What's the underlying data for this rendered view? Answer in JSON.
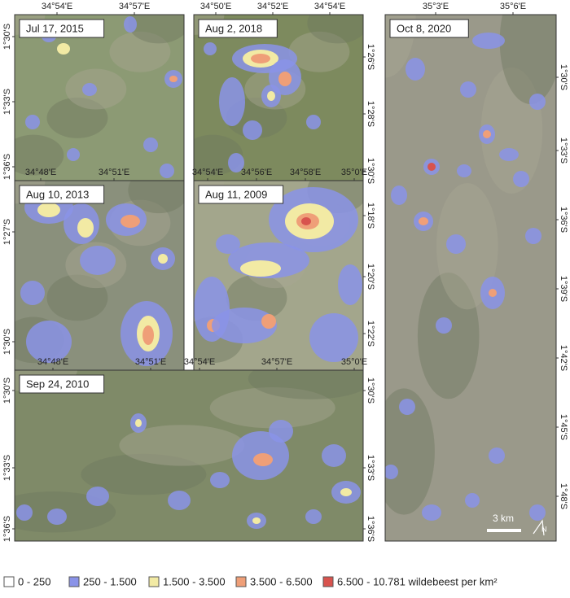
{
  "panels": [
    {
      "date": "Jul 17, 2015",
      "top_ticks": [
        "34°54'E",
        "34°57'E"
      ],
      "left_ticks": [
        "1°30'S",
        "1°33'S",
        "1°36'S"
      ],
      "right_ticks": []
    },
    {
      "date": "Aug 2, 2018",
      "top_ticks": [
        "34°50'E",
        "34°52'E",
        "34°54'E"
      ],
      "left_ticks": [],
      "right_ticks": [
        "1°26'S",
        "1°28'S",
        "1°30'S"
      ]
    },
    {
      "date": "Aug 10, 2013",
      "top_ticks": [
        "34°48'E",
        "34°51'E"
      ],
      "left_ticks": [
        "1°27'S",
        "1°30'S"
      ],
      "right_ticks": []
    },
    {
      "date": "Aug 11, 2009",
      "top_ticks": [
        "34°54'E",
        "34°56'E",
        "34°58'E",
        "35°0'E"
      ],
      "left_ticks": [],
      "right_ticks": [
        "1°18'S",
        "1°20'S",
        "1°22'S"
      ]
    },
    {
      "date": "Sep 24, 2010",
      "top_ticks": [
        "34°48'E",
        "34°51'E",
        "34°54'E",
        "34°57'E",
        "35°0'E"
      ],
      "left_ticks": [
        "1°30'S",
        "1°33'S",
        "1°36'S"
      ],
      "right_ticks": [
        "1°30'S",
        "1°33'S",
        "1°36'S"
      ]
    },
    {
      "date": "Oct 8, 2020",
      "top_ticks": [
        "35°3'E",
        "35°6'E"
      ],
      "left_ticks": [],
      "right_ticks": [
        "1°30'S",
        "1°33'S",
        "1°36'S",
        "1°39'S",
        "1°42'S",
        "1°45'S",
        "1°48'S"
      ]
    }
  ],
  "scale_bar": "3 km",
  "north": "N",
  "legend": [
    {
      "label": "0 - 250",
      "color": "#ffffff"
    },
    {
      "label": "250 - 1.500",
      "color": "#8a93e8"
    },
    {
      "label": "1.500 - 3.500",
      "color": "#f2eaa4"
    },
    {
      "label": "3.500 - 6.500",
      "color": "#ef9f78"
    },
    {
      "label": "6.500 - 10.781 wildebeest per km²",
      "color": "#d8534e"
    }
  ]
}
